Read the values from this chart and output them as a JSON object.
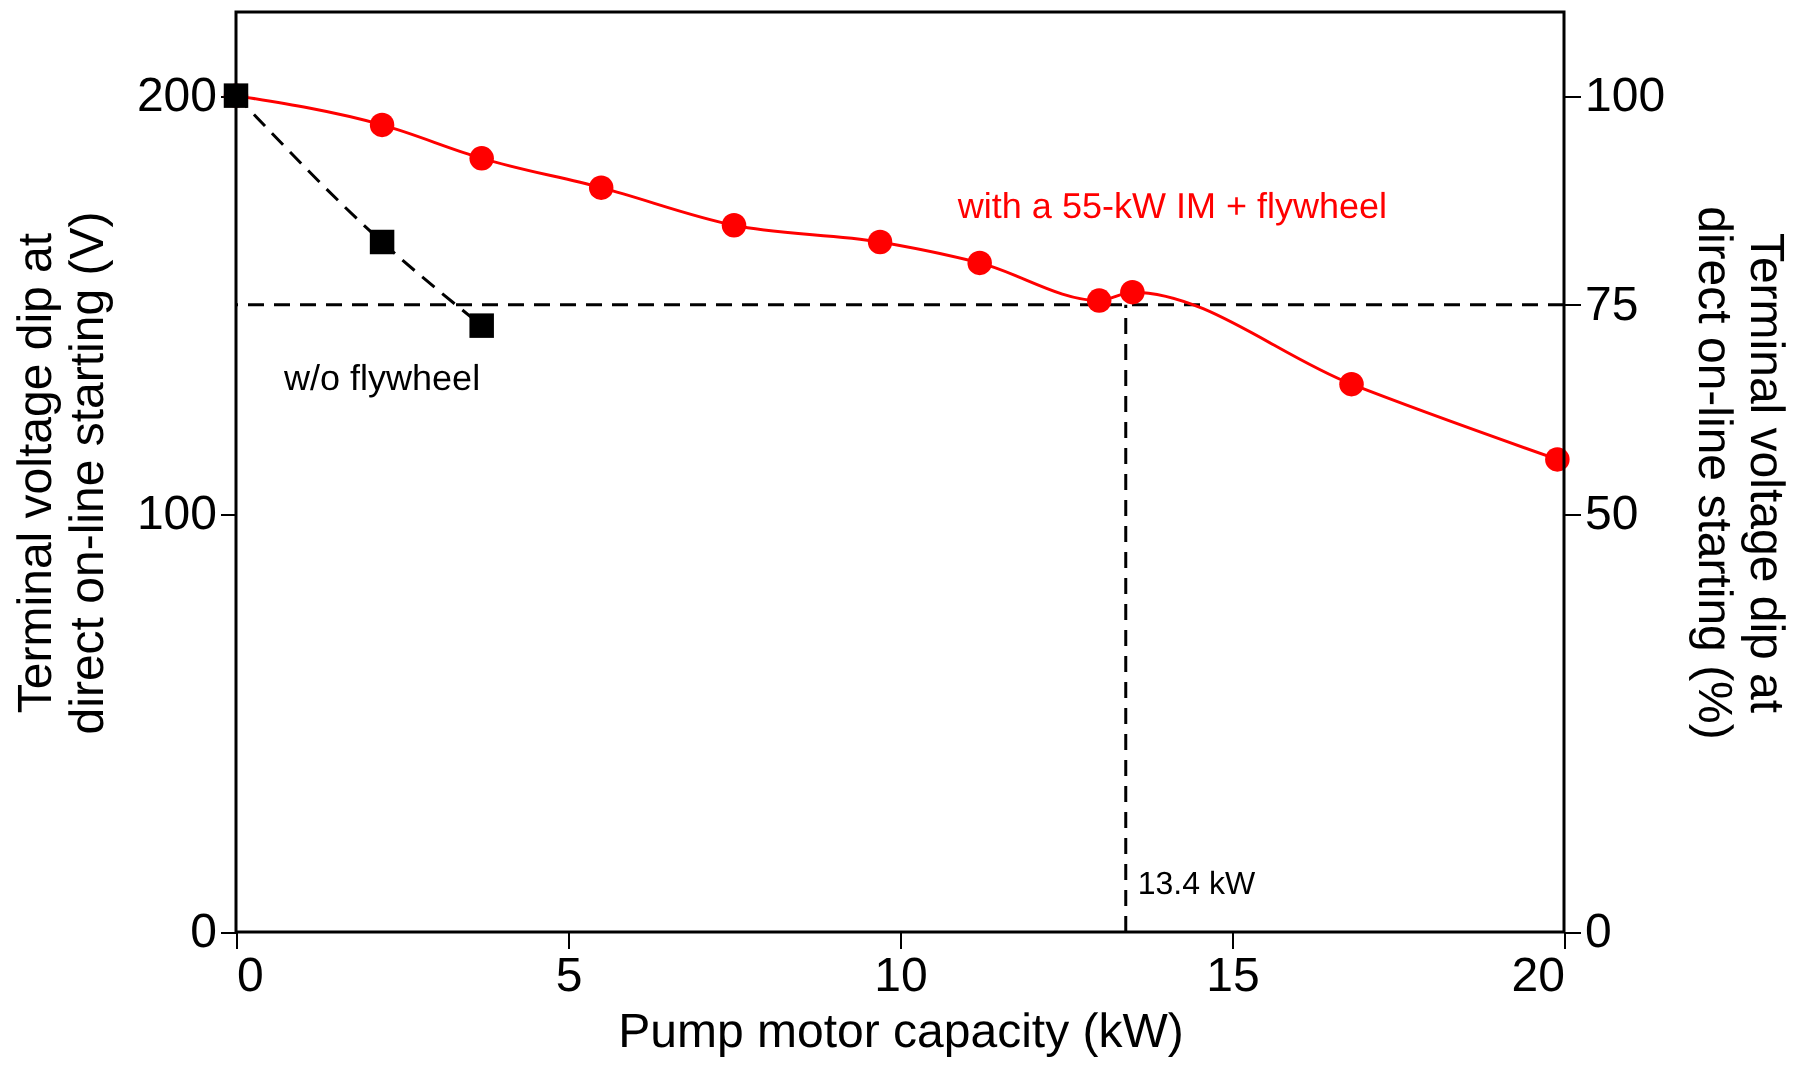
{
  "chart_data": {
    "type": "line",
    "xlabel": "Pump motor capacity (kW)",
    "ylabel": "Terminal voltage dip at direct on-line starting (V)",
    "y2label": "Terminal voltage dip at direct on-line starting (%)",
    "xlim": [
      0,
      20
    ],
    "xticks": [
      0,
      5,
      10,
      15,
      20
    ],
    "ylim": [
      0,
      220
    ],
    "yticks": [
      0,
      100,
      200
    ],
    "y2lim": [
      0,
      110
    ],
    "y2ticks": [
      0,
      50,
      75,
      100
    ],
    "grid": false,
    "series": [
      {
        "name": "with a 55-kW IM + flywheel",
        "color": "#ff0000",
        "marker": "circle",
        "line_style": "solid",
        "x": [
          0,
          2.2,
          3.7,
          5.5,
          7.5,
          9.7,
          11.2,
          13.0,
          13.5,
          16.8,
          19.9
        ],
        "values": [
          200,
          193,
          185,
          178,
          169,
          165,
          160,
          151,
          153,
          131,
          113
        ]
      },
      {
        "name": "w/o flywheel",
        "color": "#000000",
        "marker": "square",
        "line_style": "dashed",
        "x": [
          0,
          2.2,
          3.7
        ],
        "values": [
          200,
          165,
          145
        ]
      }
    ],
    "ref_lines": [
      {
        "axis": "y",
        "value": 150,
        "line_style": "dashed",
        "color": "#000000"
      },
      {
        "axis": "x",
        "value": 13.4,
        "label": "13.4 kW",
        "line_style": "dashed",
        "color": "#000000"
      }
    ]
  }
}
